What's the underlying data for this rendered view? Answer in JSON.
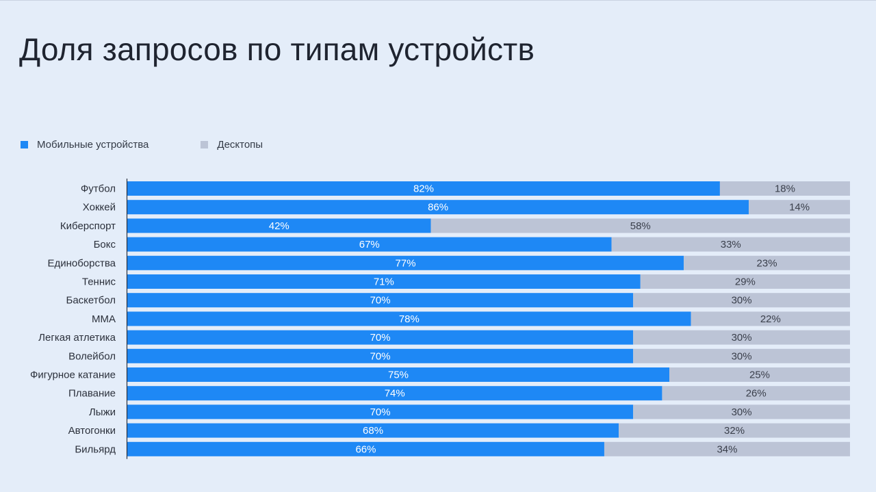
{
  "title": "Доля запросов по типам устройств",
  "colors": {
    "mobile": "#1e88f5",
    "desktop": "#bcc4d6",
    "mobile_text": "#ffffff",
    "desktop_text": "#3a3f4b"
  },
  "chart_data": {
    "type": "bar",
    "orientation": "horizontal",
    "stacked": true,
    "title": "Доля запросов по типам устройств",
    "xlim": [
      0,
      100
    ],
    "legend": "top-left",
    "grid": false,
    "categories": [
      "Футбол",
      "Хоккей",
      "Киберспорт",
      "Бокс",
      "Единоборства",
      "Теннис",
      "Баскетбол",
      "ММА",
      "Легкая атлетика",
      "Волейбол",
      "Фигурное катание",
      "Плавание",
      "Лыжи",
      "Автогонки",
      "Бильярд"
    ],
    "series": [
      {
        "name": "Мобильные устройства",
        "values": [
          82,
          86,
          42,
          67,
          77,
          71,
          70,
          78,
          70,
          70,
          75,
          74,
          70,
          68,
          66
        ],
        "labels": [
          "82%",
          "86%",
          "42%",
          "67%",
          "77%",
          "71%",
          "70%",
          "78%",
          "70%",
          "70%",
          "75%",
          "74%",
          "70%",
          "68%",
          "66%"
        ]
      },
      {
        "name": "Десктопы",
        "values": [
          18,
          14,
          58,
          33,
          23,
          29,
          30,
          22,
          30,
          30,
          25,
          26,
          30,
          32,
          34
        ],
        "labels": [
          "18%",
          "14%",
          "58%",
          "33%",
          "23%",
          "29%",
          "30%",
          "22%",
          "30%",
          "30%",
          "25%",
          "26%",
          "30%",
          "32%",
          "34%"
        ]
      }
    ]
  }
}
